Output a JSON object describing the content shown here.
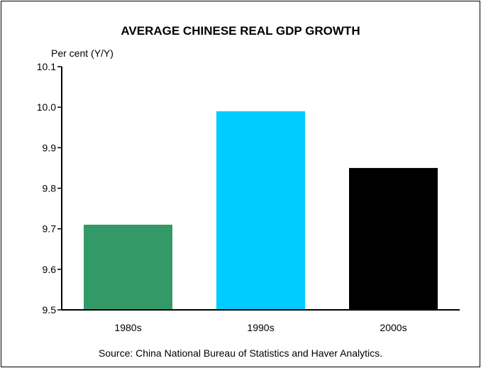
{
  "chart_data": {
    "type": "bar",
    "title": "AVERAGE CHINESE REAL GDP GROWTH",
    "ylabel": "Per cent (Y/Y)",
    "xlabel": "",
    "categories": [
      "1980s",
      "1990s",
      "2000s"
    ],
    "values": [
      9.71,
      9.99,
      9.85
    ],
    "bar_colors": [
      "#339966",
      "#00ccff",
      "#000000"
    ],
    "ylim": [
      9.5,
      10.1
    ],
    "yticks": [
      "9.5",
      "9.6",
      "9.7",
      "9.8",
      "9.9",
      "10.0",
      "10.1"
    ],
    "grid": false,
    "legend": "none",
    "source": "Source: China National Bureau of Statistics and Haver Analytics."
  }
}
